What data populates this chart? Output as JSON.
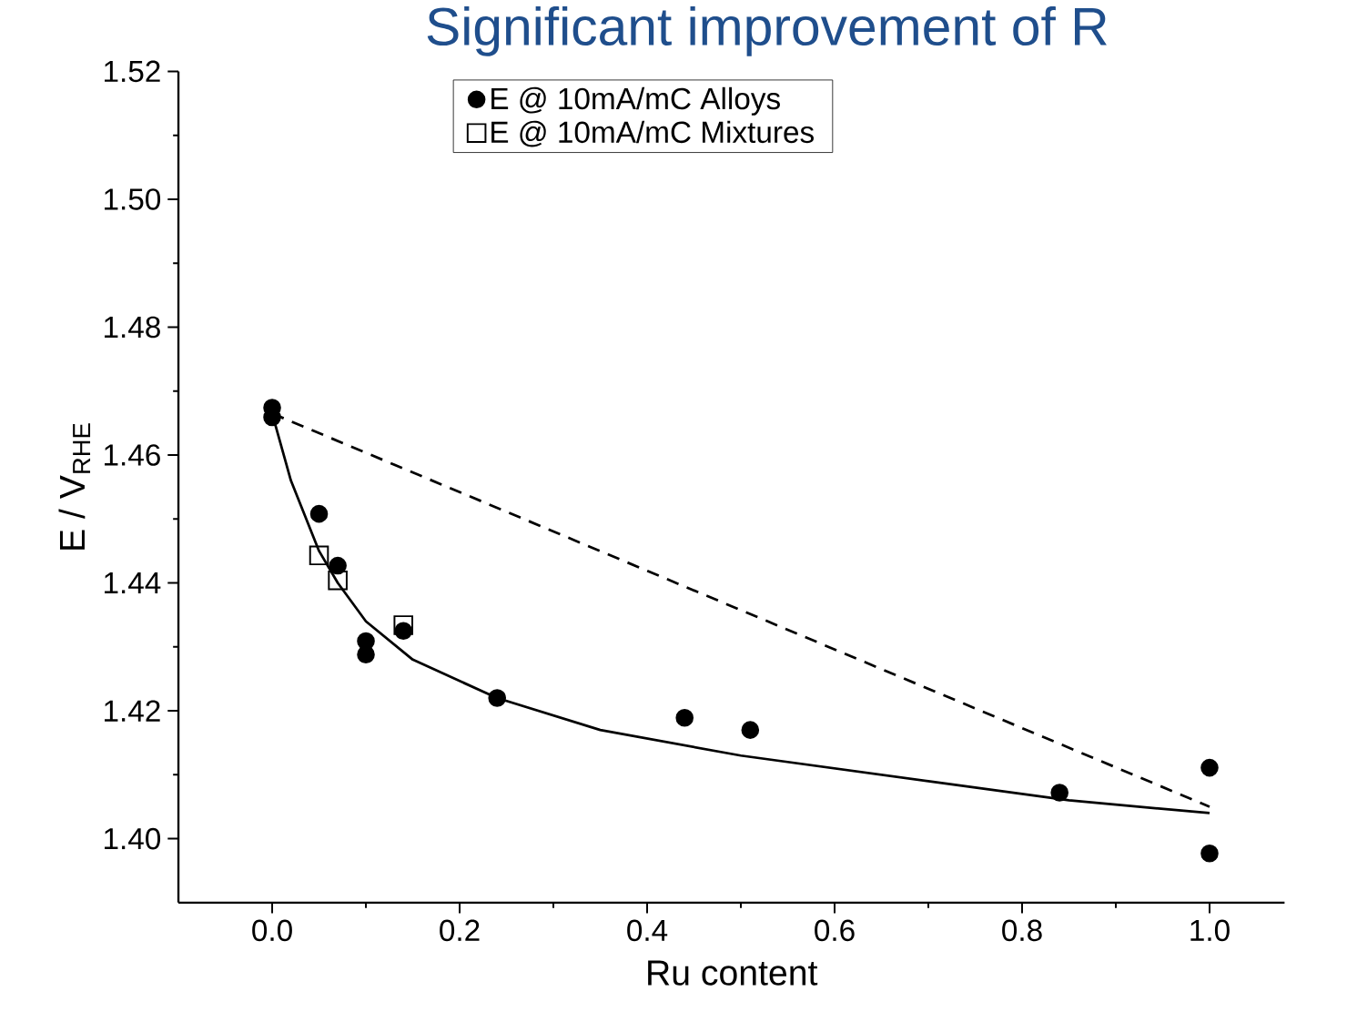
{
  "chart_data": {
    "type": "scatter",
    "title": "Significant improvement of R",
    "xlabel": "Ru content",
    "ylabel": "E / V$_{RHE}$",
    "xlim": [
      -0.1,
      1.08
    ],
    "ylim": [
      1.39,
      1.52
    ],
    "xticks": [
      {
        "value": 0,
        "label": "0.0"
      },
      {
        "value": 0.2,
        "label": "0.2"
      },
      {
        "value": 0.4,
        "label": "0.4"
      },
      {
        "value": 0.6,
        "label": "0.6"
      },
      {
        "value": 0.8,
        "label": "0.8"
      },
      {
        "value": 1,
        "label": "1.0"
      }
    ],
    "yticks": [
      {
        "value": 1.4,
        "label": "1.40"
      },
      {
        "value": 1.42,
        "label": "1.42"
      },
      {
        "value": 1.44,
        "label": "1.44"
      },
      {
        "value": 1.46,
        "label": "1.46"
      },
      {
        "value": 1.48,
        "label": "1.48"
      },
      {
        "value": 1.5,
        "label": "1.50"
      },
      {
        "value": 1.52,
        "label": "1.52"
      }
    ],
    "legend": "top",
    "grid": false,
    "series": [
      {
        "type": "line",
        "color": "#000000",
        "line_style": "solid",
        "marker": "none",
        "x": [
          0,
          0.02,
          0.05,
          0.07,
          0.1,
          0.15,
          0.24,
          0.35,
          0.5,
          0.7,
          0.85,
          1.0
        ],
        "values": [
          1.4665,
          1.456,
          1.445,
          1.44,
          1.434,
          1.428,
          1.422,
          1.417,
          1.413,
          1.409,
          1.406,
          1.404
        ]
      },
      {
        "type": "line",
        "color": "#000000",
        "line_style": "dashed",
        "marker": "none",
        "x": [
          0,
          1.0
        ],
        "values": [
          1.4665,
          1.405
        ]
      },
      {
        "name": "E @ 10mA/mC Alloys",
        "color": "#000000",
        "marker": "circle",
        "x": [
          0,
          0,
          0.05,
          0.07,
          0.1,
          0.1,
          0.14,
          0.24,
          0.44,
          0.51,
          0.84,
          1.0,
          1.0
        ],
        "values": [
          1.4674,
          1.4659,
          1.4508,
          1.4427,
          1.4309,
          1.4288,
          1.4325,
          1.422,
          1.4189,
          1.417,
          1.4072,
          1.4111,
          1.3977
        ]
      },
      {
        "name": "E @ 10mA/mC Mixtures",
        "color": "#000000",
        "marker": "square",
        "x": [
          0.05,
          0.07,
          0.14
        ],
        "values": [
          1.4443,
          1.4404,
          1.4334
        ]
      }
    ]
  }
}
